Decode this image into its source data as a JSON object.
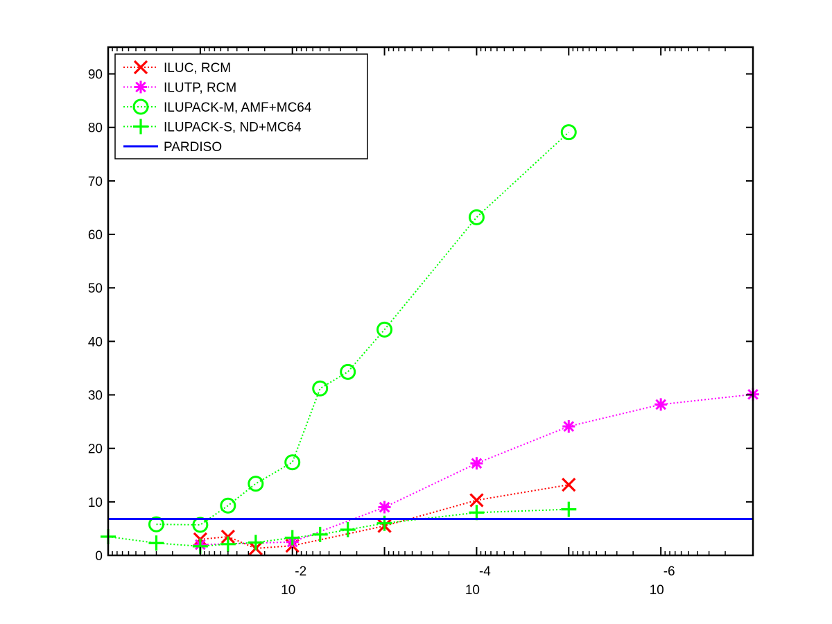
{
  "chart_data": {
    "type": "line",
    "title": "",
    "xlabel": "",
    "ylabel": "",
    "x_scale": "log-reversed",
    "xlim": [
      1,
      1e-07
    ],
    "ylim": [
      0,
      95
    ],
    "grid": false,
    "legend_position": "top-left",
    "x_ticks": [
      {
        "value": 0.01,
        "base": "10",
        "exp": "-2"
      },
      {
        "value": 0.0001,
        "base": "10",
        "exp": "-4"
      },
      {
        "value": 1e-06,
        "base": "10",
        "exp": "-6"
      }
    ],
    "y_ticks": [
      "0",
      "10",
      "20",
      "30",
      "40",
      "50",
      "60",
      "70",
      "80",
      "90"
    ],
    "series": [
      {
        "name": "ILUC, RCM",
        "color": "#ff0000",
        "marker": "x-mark",
        "line": "dotted",
        "points": [
          {
            "x": 0.1,
            "y": 3
          },
          {
            "x": 0.05,
            "y": 3.5
          },
          {
            "x": 0.025,
            "y": 1.3
          },
          {
            "x": 0.01,
            "y": 1.8
          },
          {
            "x": 0.001,
            "y": 5.5
          },
          {
            "x": 0.0001,
            "y": 10.3
          },
          {
            "x": 1e-05,
            "y": 13.2
          }
        ]
      },
      {
        "name": "ILUTP, RCM",
        "color": "#ff00ff",
        "marker": "asterisk",
        "line": "dotted",
        "points": [
          {
            "x": 0.1,
            "y": 2
          },
          {
            "x": 0.01,
            "y": 2.5
          },
          {
            "x": 0.001,
            "y": 9
          },
          {
            "x": 0.0001,
            "y": 17.2
          },
          {
            "x": 1e-05,
            "y": 24.1
          },
          {
            "x": 1e-06,
            "y": 28.2
          },
          {
            "x": 1e-07,
            "y": 30.1
          }
        ]
      },
      {
        "name": "ILUPACK-M, AMF+MC64",
        "color": "#00ff00",
        "marker": "circle",
        "line": "dotted",
        "points": [
          {
            "x": 0.3,
            "y": 5.8
          },
          {
            "x": 0.1,
            "y": 5.7
          },
          {
            "x": 0.05,
            "y": 9.3
          },
          {
            "x": 0.025,
            "y": 13.4
          },
          {
            "x": 0.01,
            "y": 17.4
          },
          {
            "x": 0.005,
            "y": 31.2
          },
          {
            "x": 0.0025,
            "y": 34.3
          },
          {
            "x": 0.001,
            "y": 42.2
          },
          {
            "x": 0.0001,
            "y": 63.2
          },
          {
            "x": 1e-05,
            "y": 79.1
          }
        ]
      },
      {
        "name": "ILUPACK-S, ND+MC64",
        "color": "#00ff00",
        "marker": "plus",
        "line": "dotted",
        "points": [
          {
            "x": 1,
            "y": 3.5
          },
          {
            "x": 0.3,
            "y": 2.3
          },
          {
            "x": 0.1,
            "y": 1.7
          },
          {
            "x": 0.05,
            "y": 2.1
          },
          {
            "x": 0.025,
            "y": 2.4
          },
          {
            "x": 0.01,
            "y": 3.3
          },
          {
            "x": 0.005,
            "y": 3.9
          },
          {
            "x": 0.0025,
            "y": 4.8
          },
          {
            "x": 0.001,
            "y": 6
          },
          {
            "x": 0.0001,
            "y": 8
          },
          {
            "x": 1e-05,
            "y": 8.6
          }
        ]
      },
      {
        "name": "PARDISO",
        "color": "#0000ff",
        "marker": "none",
        "line": "solid",
        "points": [
          {
            "x": 1,
            "y": 6.8
          },
          {
            "x": 1e-07,
            "y": 6.8
          }
        ]
      }
    ]
  }
}
